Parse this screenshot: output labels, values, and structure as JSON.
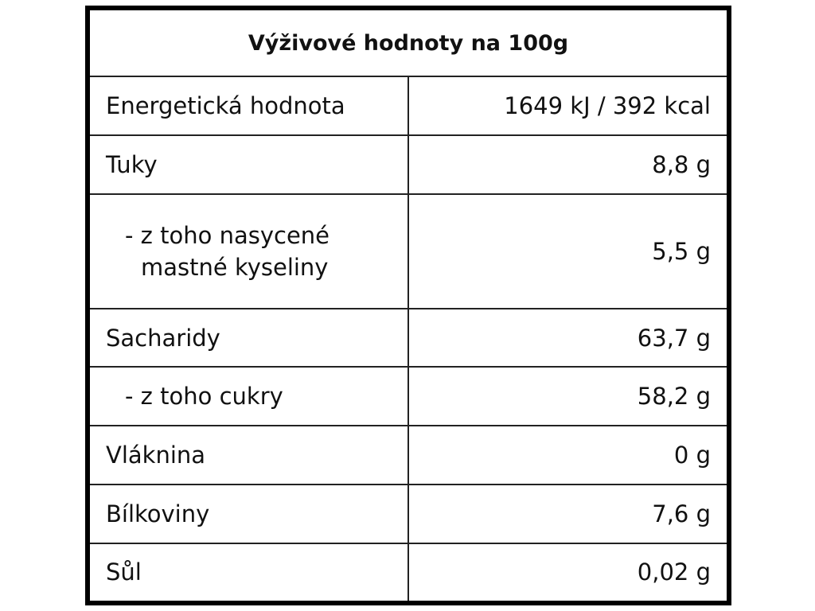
{
  "table": {
    "title": "Výživové hodnoty na 100g",
    "rows": [
      [
        "Energetická hodnota",
        "1649 kJ / 392 kcal"
      ],
      [
        "Tuky",
        "8,8 g"
      ],
      [
        "- z toho nasycené\nmastné kyseliny",
        "5,5 g"
      ],
      [
        "Sacharidy",
        "63,7 g"
      ],
      [
        "- z toho cukry",
        "58,2 g"
      ],
      [
        "Vláknina",
        "0 g"
      ],
      [
        "Bílkoviny",
        "7,6 g"
      ],
      [
        "Sůl",
        "0,02 g"
      ]
    ]
  }
}
